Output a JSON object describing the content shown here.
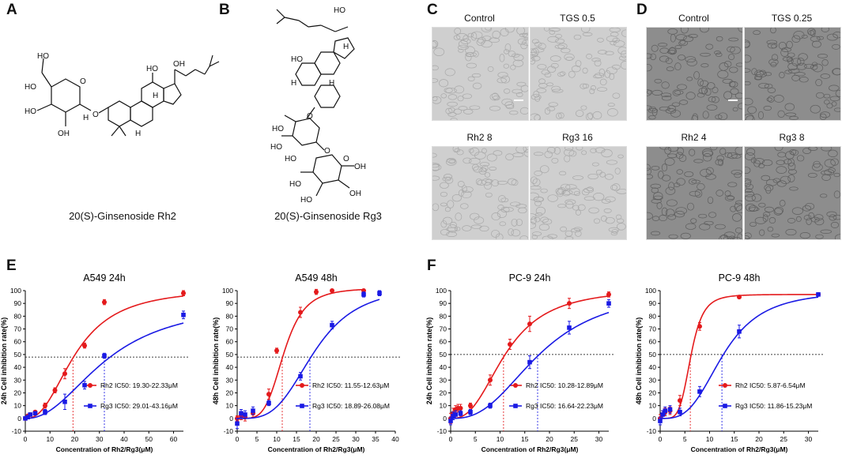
{
  "panel_letters": [
    "A",
    "B",
    "C",
    "D",
    "E",
    "F"
  ],
  "structures": {
    "rh2_caption": "20(S)-Ginsenoside Rh2",
    "rg3_caption": "20(S)-Ginsenoside Rg3",
    "rh2_labels": {
      "ho1": "HO",
      "ho2": "HO",
      "ho3": "HO",
      "ho4": "HO",
      "oh1": "OH",
      "oh2": "OH",
      "o1": "O",
      "o2": "O",
      "h1": "H",
      "h2": "H",
      "h3": "H"
    },
    "rg3_labels": {
      "ho1": "HO",
      "ho2": "HO",
      "ho3": "HO",
      "ho4": "HO",
      "ho5": "HO",
      "ho6": "HO",
      "ho7": "HO",
      "oh1": "OH",
      "oh2": "OH",
      "o1": "O",
      "o2": "O",
      "o3": "O",
      "h1": "H",
      "h2": "H",
      "h3": "H"
    }
  },
  "micrographs": {
    "C": [
      "Control",
      "TGS 0.5",
      "Rh2   8",
      "Rg3 16"
    ],
    "D": [
      "Control",
      "TGS 0.25",
      "Rh2   4",
      "Rg3 8"
    ],
    "C_tone": "#cfcfcf",
    "D_tone": "#8d8d8d"
  },
  "colors": {
    "rh2": "#e41a1c",
    "rg3": "#1a1ae4"
  },
  "chart_data": [
    {
      "type": "scatter",
      "title": "A549 24h",
      "xlabel": "Concentration of Rh2/Rg3(μM)",
      "ylabel": "24h Cell inhibition rate(%)",
      "xlim": [
        0,
        64
      ],
      "ylim": [
        -10,
        100
      ],
      "xticks": [
        0,
        10,
        20,
        30,
        40,
        50,
        60
      ],
      "yticks": [
        -10,
        0,
        10,
        20,
        30,
        40,
        50,
        60,
        70,
        80,
        90,
        100
      ],
      "hline": 48,
      "ic50_markers": [
        19.3,
        32
      ],
      "series": [
        {
          "name": "Rh2",
          "ic50_text": "Rh2 IC50: 19.30-22.33μM",
          "x": [
            0,
            1,
            2,
            4,
            8,
            12,
            16,
            24,
            32,
            64
          ],
          "y": [
            0,
            2,
            3,
            5,
            10,
            22,
            35,
            57,
            91,
            98
          ],
          "err": [
            1,
            1,
            1,
            1,
            2,
            2,
            4,
            2,
            2,
            2
          ],
          "fit": {
            "bottom": 0,
            "top": 102,
            "ec50": 20.5,
            "hill": 2.4
          }
        },
        {
          "name": "Rg3",
          "ic50_text": "Rg3 IC50: 29.01-43.16μM",
          "x": [
            0,
            1,
            2,
            4,
            8,
            16,
            24,
            32,
            64
          ],
          "y": [
            0,
            1,
            3,
            4,
            5,
            13,
            26,
            49,
            81
          ],
          "err": [
            1,
            1,
            1,
            1,
            2,
            6,
            3,
            2,
            3
          ],
          "fit": {
            "bottom": 0,
            "top": 92,
            "ec50": 33,
            "hill": 2.2
          }
        }
      ]
    },
    {
      "type": "scatter",
      "title": "A549 48h",
      "xlabel": "Concentration of Rh2/Rg3(μM)",
      "ylabel": "48h Cell inhibition rate(%)",
      "xlim": [
        0,
        40
      ],
      "ylim": [
        -10,
        100
      ],
      "xticks": [
        0,
        5,
        10,
        15,
        20,
        25,
        30,
        35,
        40
      ],
      "yticks": [
        -10,
        0,
        10,
        20,
        30,
        40,
        50,
        60,
        70,
        80,
        90,
        100
      ],
      "hline": 48,
      "ic50_markers": [
        11.4,
        18.4
      ],
      "series": [
        {
          "name": "Rh2",
          "ic50_text": "Rh2 IC50: 11.55-12.63μM",
          "x": [
            0,
            1,
            2,
            4,
            8,
            10,
            16,
            20,
            24,
            32
          ],
          "y": [
            0,
            2,
            1,
            4,
            19,
            53,
            83,
            99,
            100,
            100
          ],
          "err": [
            2,
            3,
            3,
            3,
            4,
            2,
            4,
            2,
            1,
            1
          ],
          "fit": {
            "bottom": 0,
            "top": 102,
            "ec50": 11.8,
            "hill": 4.5
          }
        },
        {
          "name": "Rg3",
          "ic50_text": "Rg3 IC50: 18.89-26.08μM",
          "x": [
            0,
            1,
            2,
            4,
            8,
            16,
            24,
            32,
            36
          ],
          "y": [
            -4,
            4,
            3,
            6,
            12,
            33,
            73,
            97,
            98
          ],
          "err": [
            4,
            3,
            3,
            3,
            2,
            3,
            3,
            2,
            2
          ],
          "fit": {
            "bottom": 0,
            "top": 104,
            "ec50": 19.5,
            "hill": 3.5
          }
        }
      ]
    },
    {
      "type": "scatter",
      "title": "PC-9 24h",
      "xlabel": "Concentration of Rh2/Rg3(μM)",
      "ylabel": "24h Cell inhibition rate(%)",
      "xlim": [
        0,
        32
      ],
      "ylim": [
        -10,
        100
      ],
      "xticks": [
        0,
        5,
        10,
        15,
        20,
        25,
        30
      ],
      "yticks": [
        -10,
        0,
        10,
        20,
        30,
        40,
        50,
        60,
        70,
        80,
        90,
        100
      ],
      "hline": 50,
      "ic50_markers": [
        10.7,
        17.6
      ],
      "series": [
        {
          "name": "Rh2",
          "ic50_text": "Rh2 IC50: 10.28-12.89μM",
          "x": [
            0,
            0.5,
            1,
            1.5,
            2,
            4,
            8,
            12,
            16,
            24,
            32
          ],
          "y": [
            0,
            4,
            7,
            8,
            8,
            10,
            30,
            58,
            74,
            90,
            97
          ],
          "err": [
            4,
            4,
            3,
            3,
            3,
            2,
            4,
            4,
            6,
            4,
            2
          ],
          "fit": {
            "bottom": 0,
            "top": 102,
            "ec50": 11.2,
            "hill": 2.6
          }
        },
        {
          "name": "Rg3",
          "ic50_text": "Rg3 IC50: 16.64-22.23μM",
          "x": [
            0,
            0.5,
            1,
            2,
            4,
            8,
            16,
            24,
            32
          ],
          "y": [
            -2,
            2,
            3,
            4,
            5,
            10,
            44,
            71,
            90
          ],
          "err": [
            3,
            3,
            3,
            2,
            2,
            2,
            5,
            5,
            3
          ],
          "fit": {
            "bottom": 0,
            "top": 102,
            "ec50": 18.2,
            "hill": 2.6
          }
        }
      ]
    },
    {
      "type": "scatter",
      "title": "PC-9 48h",
      "xlabel": "Concentration of Rh2/Rg3(μM)",
      "ylabel": "48h Cell inhibition rate(%)",
      "xlim": [
        0,
        32
      ],
      "ylim": [
        -10,
        100
      ],
      "xticks": [
        0,
        5,
        10,
        15,
        20,
        25,
        30
      ],
      "yticks": [
        -10,
        0,
        10,
        20,
        30,
        40,
        50,
        60,
        70,
        80,
        90,
        100
      ],
      "hline": 50,
      "ic50_markers": [
        6.1,
        12.5
      ],
      "series": [
        {
          "name": "Rh2",
          "ic50_text": "Rh2 IC50: 5.87-6.54μM",
          "x": [
            0,
            0.5,
            1,
            2,
            4,
            8,
            16,
            32
          ],
          "y": [
            0,
            3,
            5,
            6,
            14,
            72,
            95,
            97
          ],
          "err": [
            3,
            3,
            3,
            3,
            4,
            3,
            1,
            1
          ],
          "fit": {
            "bottom": 0,
            "top": 97,
            "ec50": 6.2,
            "hill": 5
          }
        },
        {
          "name": "Rg3",
          "ic50_text": "Rg3 IC50: 11.86-15.23μM",
          "x": [
            0,
            0.5,
            1,
            2,
            4,
            8,
            16,
            32
          ],
          "y": [
            -2,
            3,
            6,
            7,
            5,
            21,
            68,
            97
          ],
          "err": [
            3,
            3,
            3,
            3,
            3,
            4,
            5,
            1
          ],
          "fit": {
            "bottom": 0,
            "top": 100,
            "ec50": 12.8,
            "hill": 3.2
          }
        }
      ]
    }
  ]
}
